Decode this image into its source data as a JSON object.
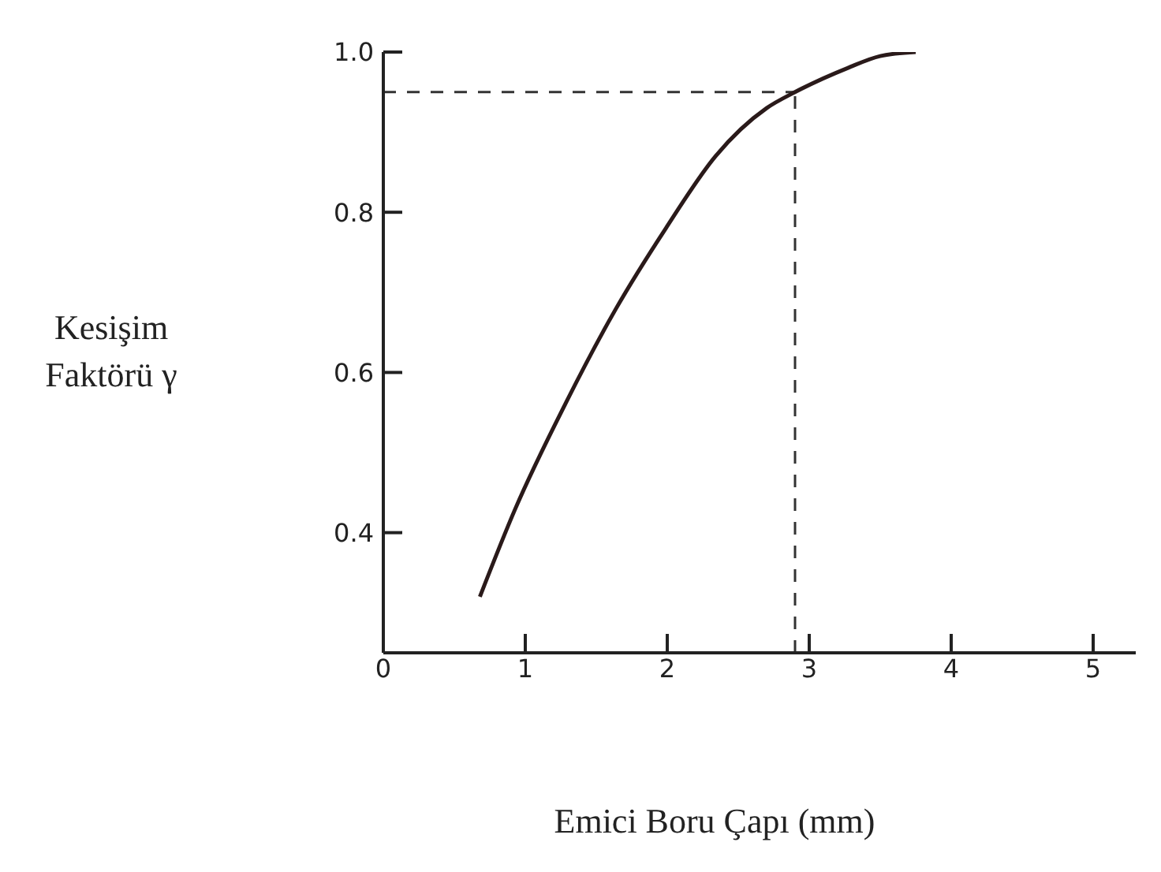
{
  "chart_data": {
    "type": "line",
    "xlabel": "Emici Boru Çapı (mm)",
    "ylabel": "Kesişim Faktörü γ",
    "series": [
      {
        "color": "#2a1a1a",
        "x": [
          0.68,
          0.93,
          1.28,
          1.64,
          1.99,
          2.34,
          2.7,
          2.9,
          3.27,
          3.5,
          3.75
        ],
        "values": [
          0.32,
          0.43,
          0.56,
          0.68,
          0.78,
          0.87,
          0.93,
          0.95,
          0.98,
          0.995,
          1.0
        ]
      }
    ],
    "xlim": [
      0,
      5.3
    ],
    "xticks": [
      0,
      1,
      2,
      3,
      4,
      5
    ],
    "ylim": [
      0.25,
      1.0
    ],
    "yticks": [
      0.4,
      0.6,
      0.8,
      {
        "value": 1.0,
        "label": "1.0"
      }
    ],
    "ref_lines": [
      {
        "axis": "y",
        "value": 0.95,
        "line_style": "dashed"
      },
      {
        "axis": "x",
        "value": 2.9,
        "line_style": "dashed"
      }
    ],
    "grid": false,
    "marker": "none",
    "line_style": "solid"
  }
}
